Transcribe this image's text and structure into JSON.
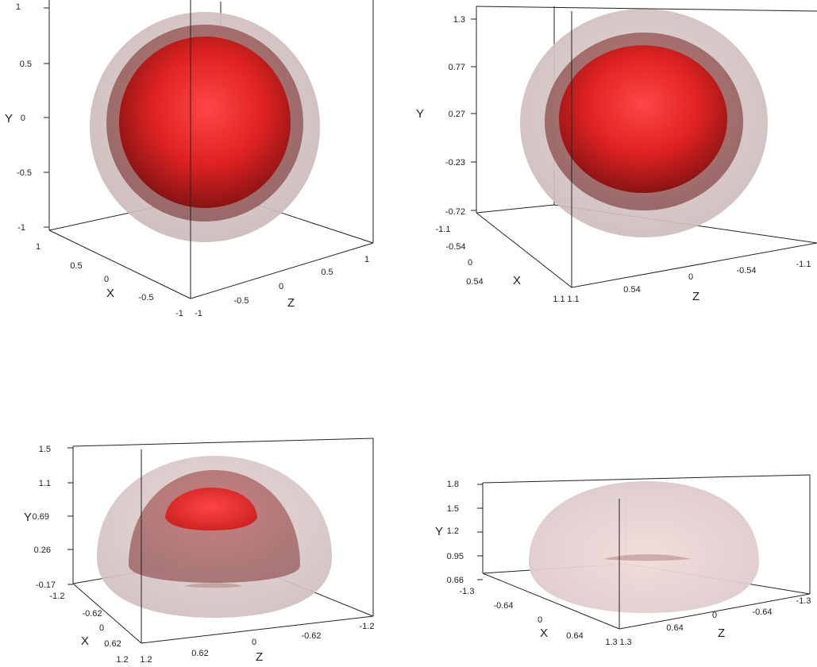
{
  "colors": {
    "shell_outer": "#bcbcbc",
    "shell_mid": "#9a4a4a",
    "core": "#e02222",
    "box_edge": "#222222"
  },
  "chart_data": [
    {
      "type": "3d-surface",
      "panel": "top-left",
      "axes": {
        "x": {
          "label": "X",
          "ticks": [
            "1",
            "0.5",
            "0",
            "-0.5",
            "-1"
          ]
        },
        "y": {
          "label": "Y",
          "ticks": [
            "1",
            "0.5",
            "0",
            "-0.5",
            "-1"
          ]
        },
        "z": {
          "label": "Z",
          "ticks": [
            "-1",
            "-0.5",
            "0",
            "0.5",
            "1"
          ]
        }
      },
      "surfaces": [
        {
          "shape": "sphere",
          "role": "outer",
          "radius": 1.0
        },
        {
          "shape": "sphere",
          "role": "middle",
          "radius": 0.8
        },
        {
          "shape": "sphere",
          "role": "inner",
          "radius": 0.7
        }
      ]
    },
    {
      "type": "3d-surface",
      "panel": "top-right",
      "axes": {
        "x": {
          "label": "X",
          "ticks": [
            "-1.1",
            "-0.54",
            "0",
            "0.54",
            "1.1"
          ]
        },
        "y": {
          "label": "Y",
          "ticks": [
            "1.3",
            "0.77",
            "0.27",
            "-0.23",
            "-0.72"
          ]
        },
        "z": {
          "label": "Z",
          "ticks": [
            "1.1",
            "0.54",
            "0",
            "-0.54",
            "-1.1"
          ]
        }
      },
      "surfaces": [
        {
          "shape": "sphere",
          "role": "outer"
        },
        {
          "shape": "sphere",
          "role": "middle"
        },
        {
          "shape": "sphere",
          "role": "inner"
        }
      ]
    },
    {
      "type": "3d-surface",
      "panel": "bottom-left",
      "axes": {
        "x": {
          "label": "X",
          "ticks": [
            "-1.2",
            "-0.62",
            "0",
            "0.62",
            "1.2"
          ]
        },
        "y": {
          "label": "Y",
          "ticks": [
            "1.5",
            "1.1",
            "0.69",
            "0.26",
            "-0.17"
          ]
        },
        "z": {
          "label": "Z",
          "ticks": [
            "1.2",
            "0.62",
            "0",
            "-0.62",
            "-1.2"
          ]
        }
      },
      "surfaces": [
        {
          "shape": "dome",
          "role": "outer"
        },
        {
          "shape": "dome",
          "role": "middle"
        },
        {
          "shape": "cap",
          "role": "inner"
        }
      ]
    },
    {
      "type": "3d-surface",
      "panel": "bottom-right",
      "axes": {
        "x": {
          "label": "X",
          "ticks": [
            "-1.3",
            "-0.64",
            "0",
            "0.64",
            "1.3"
          ]
        },
        "y": {
          "label": "Y",
          "ticks": [
            "1.8",
            "1.5",
            "1.2",
            "0.95",
            "0.66"
          ]
        },
        "z": {
          "label": "Z",
          "ticks": [
            "1.3",
            "0.64",
            "0",
            "-0.64",
            "-1.3"
          ]
        }
      },
      "surfaces": [
        {
          "shape": "dome",
          "role": "outer"
        }
      ]
    }
  ]
}
